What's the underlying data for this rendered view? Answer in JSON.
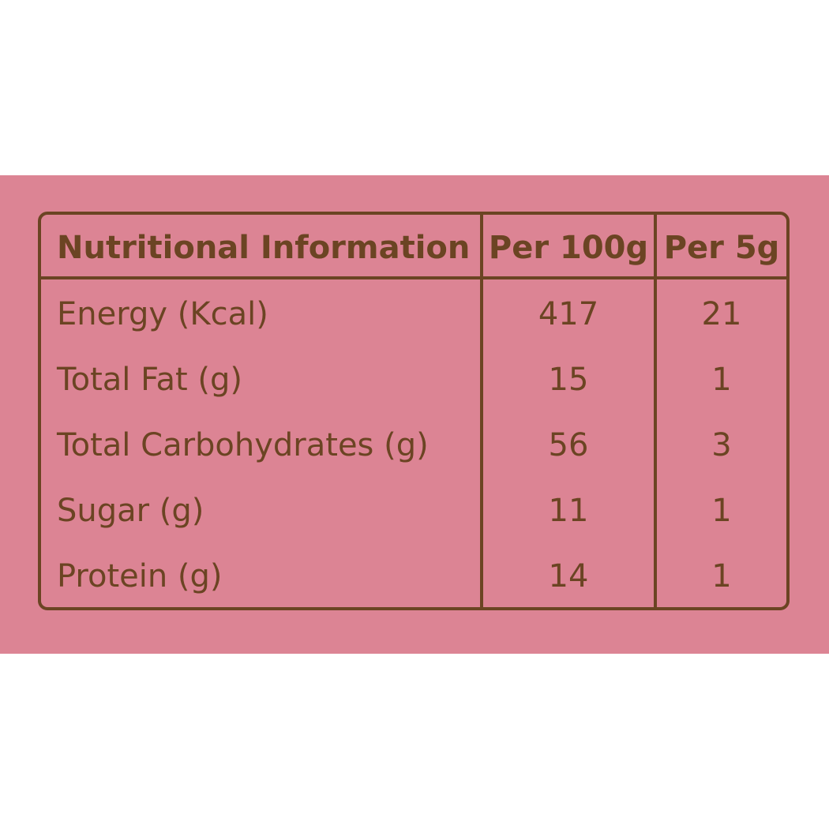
{
  "table": {
    "header": [
      "Nutritional Information",
      "Per 100g",
      "Per 5g"
    ],
    "rows": [
      [
        "Energy (Kcal)",
        "417",
        "21"
      ],
      [
        "Total Fat (g)",
        "15",
        "1"
      ],
      [
        "Total Carbohydrates (g)",
        "56",
        "3"
      ],
      [
        "Sugar (g)",
        "11",
        "1"
      ],
      [
        "Protein (g)",
        "14",
        "1"
      ]
    ]
  }
}
